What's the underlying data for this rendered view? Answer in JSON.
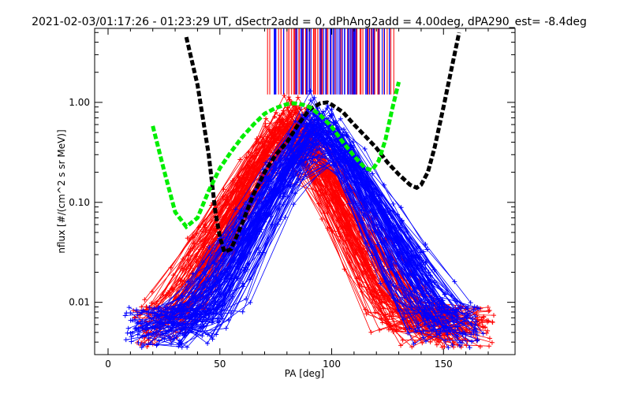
{
  "chart_data": {
    "type": "line",
    "title": "2021-02-03/01:17:26 - 01:23:29 UT, dSectr2add = 0, dPhAng2add = 4.00deg, dPA290_est=  -8.4deg",
    "xlabel": "PA [deg]",
    "ylabel": "nflux [#/(cm^2 s sr MeV)]",
    "xlim": [
      -6,
      182
    ],
    "ylim": [
      0.003,
      5.5
    ],
    "yscale": "log",
    "xticks": [
      0,
      50,
      100,
      150
    ],
    "xticklabels": [
      "0",
      "50",
      "100",
      "150"
    ],
    "yticks": [
      0.01,
      0.1,
      1.0
    ],
    "yticklabels": [
      "0.01",
      "0.10",
      "1.00"
    ],
    "grid": false,
    "legend": "none",
    "colors": {
      "red": "#ff0000",
      "blue": "#0000ff",
      "black": "#000000",
      "green": "#00ee00"
    },
    "series": [
      {
        "color": "red",
        "style": "line+plus",
        "curve_count": 110,
        "x_range": [
          12,
          172
        ],
        "peak_x": [
          76,
          86
        ],
        "peak_y": 0.9
      },
      {
        "color": "blue",
        "style": "line+plus",
        "curve_count": 110,
        "x_range": [
          8,
          166
        ],
        "peak_x": [
          90,
          100
        ],
        "peak_y": 0.95
      },
      {
        "color": "black",
        "style": "dashed",
        "x": [
          35,
          40,
          45,
          48,
          50,
          52,
          55,
          60,
          65,
          70,
          75,
          80,
          85,
          90,
          95,
          98,
          100,
          105,
          110,
          115,
          120,
          125,
          130,
          135,
          138,
          140,
          143,
          146,
          150,
          154,
          157
        ],
        "y": [
          4.5,
          1.5,
          0.3,
          0.08,
          0.045,
          0.032,
          0.034,
          0.062,
          0.12,
          0.2,
          0.3,
          0.4,
          0.6,
          0.85,
          0.98,
          1.0,
          0.95,
          0.8,
          0.6,
          0.46,
          0.35,
          0.25,
          0.19,
          0.15,
          0.14,
          0.15,
          0.2,
          0.35,
          0.9,
          2.4,
          5.0
        ]
      },
      {
        "color": "green",
        "style": "dashed",
        "x": [
          20,
          25,
          30,
          35,
          40,
          45,
          50,
          55,
          60,
          65,
          70,
          75,
          80,
          83,
          87,
          90,
          95,
          100,
          105,
          110,
          115,
          118,
          121,
          124,
          127,
          130
        ],
        "y": [
          0.58,
          0.21,
          0.08,
          0.057,
          0.07,
          0.13,
          0.22,
          0.32,
          0.45,
          0.6,
          0.77,
          0.88,
          0.96,
          0.98,
          0.95,
          0.9,
          0.74,
          0.57,
          0.4,
          0.29,
          0.22,
          0.21,
          0.26,
          0.42,
          0.85,
          1.6
        ]
      }
    ],
    "vertical_lines": [
      {
        "color": "red",
        "x_range": [
          71,
          128
        ],
        "y_range": [
          1.2,
          5.5
        ],
        "count": 70
      },
      {
        "color": "blue",
        "x_range": [
          74,
          126
        ],
        "y_range": [
          1.2,
          5.5
        ],
        "count": 55
      }
    ]
  }
}
